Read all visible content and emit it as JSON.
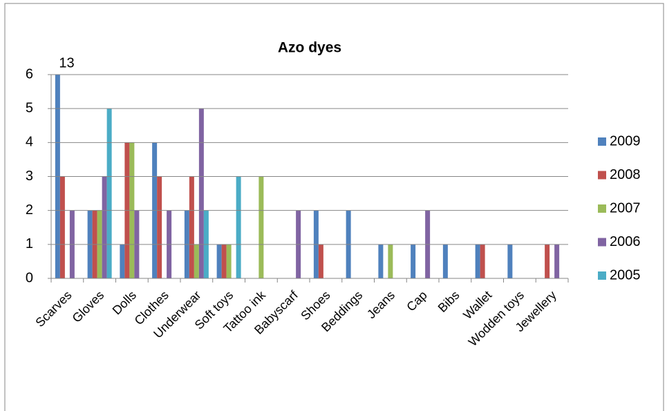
{
  "chart_data": {
    "type": "bar",
    "title": "Azo dyes",
    "categories": [
      "Scarves",
      "Gloves",
      "Dolls",
      "Clothes",
      "Underwear",
      "Soft toys",
      "Tattoo ink",
      "Babyscarf",
      "Shoes",
      "Beddings",
      "Jeans",
      "Cap",
      "Bibs",
      "Wallet",
      "Wodden toys",
      "Jewellery"
    ],
    "series": [
      {
        "name": "2009",
        "color": "#4f81bd",
        "values": [
          13,
          2,
          1,
          4,
          2,
          1,
          0,
          0,
          2,
          2,
          1,
          1,
          1,
          1,
          1,
          0
        ],
        "value_labels": [
          "13",
          null,
          null,
          null,
          null,
          null,
          null,
          null,
          null,
          null,
          null,
          null,
          null,
          null,
          null,
          null
        ]
      },
      {
        "name": "2008",
        "color": "#c0504d",
        "values": [
          3,
          2,
          4,
          3,
          3,
          1,
          0,
          0,
          1,
          0,
          0,
          0,
          0,
          1,
          0,
          1
        ]
      },
      {
        "name": "2007",
        "color": "#9bbb59",
        "values": [
          0,
          2,
          4,
          0,
          1,
          1,
          3,
          0,
          0,
          0,
          1,
          0,
          0,
          0,
          0,
          0
        ]
      },
      {
        "name": "2006",
        "color": "#8064a2",
        "values": [
          2,
          3,
          2,
          2,
          5,
          0,
          0,
          2,
          0,
          0,
          0,
          2,
          0,
          0,
          0,
          1
        ]
      },
      {
        "name": "2005",
        "color": "#4bacc6",
        "values": [
          0,
          5,
          0,
          0,
          2,
          3,
          0,
          0,
          0,
          0,
          0,
          0,
          0,
          0,
          0,
          0
        ]
      }
    ],
    "ylim": [
      0,
      6
    ],
    "yticks": [
      0,
      1,
      2,
      3,
      4,
      5,
      6
    ],
    "grid": true,
    "legend": "right"
  }
}
